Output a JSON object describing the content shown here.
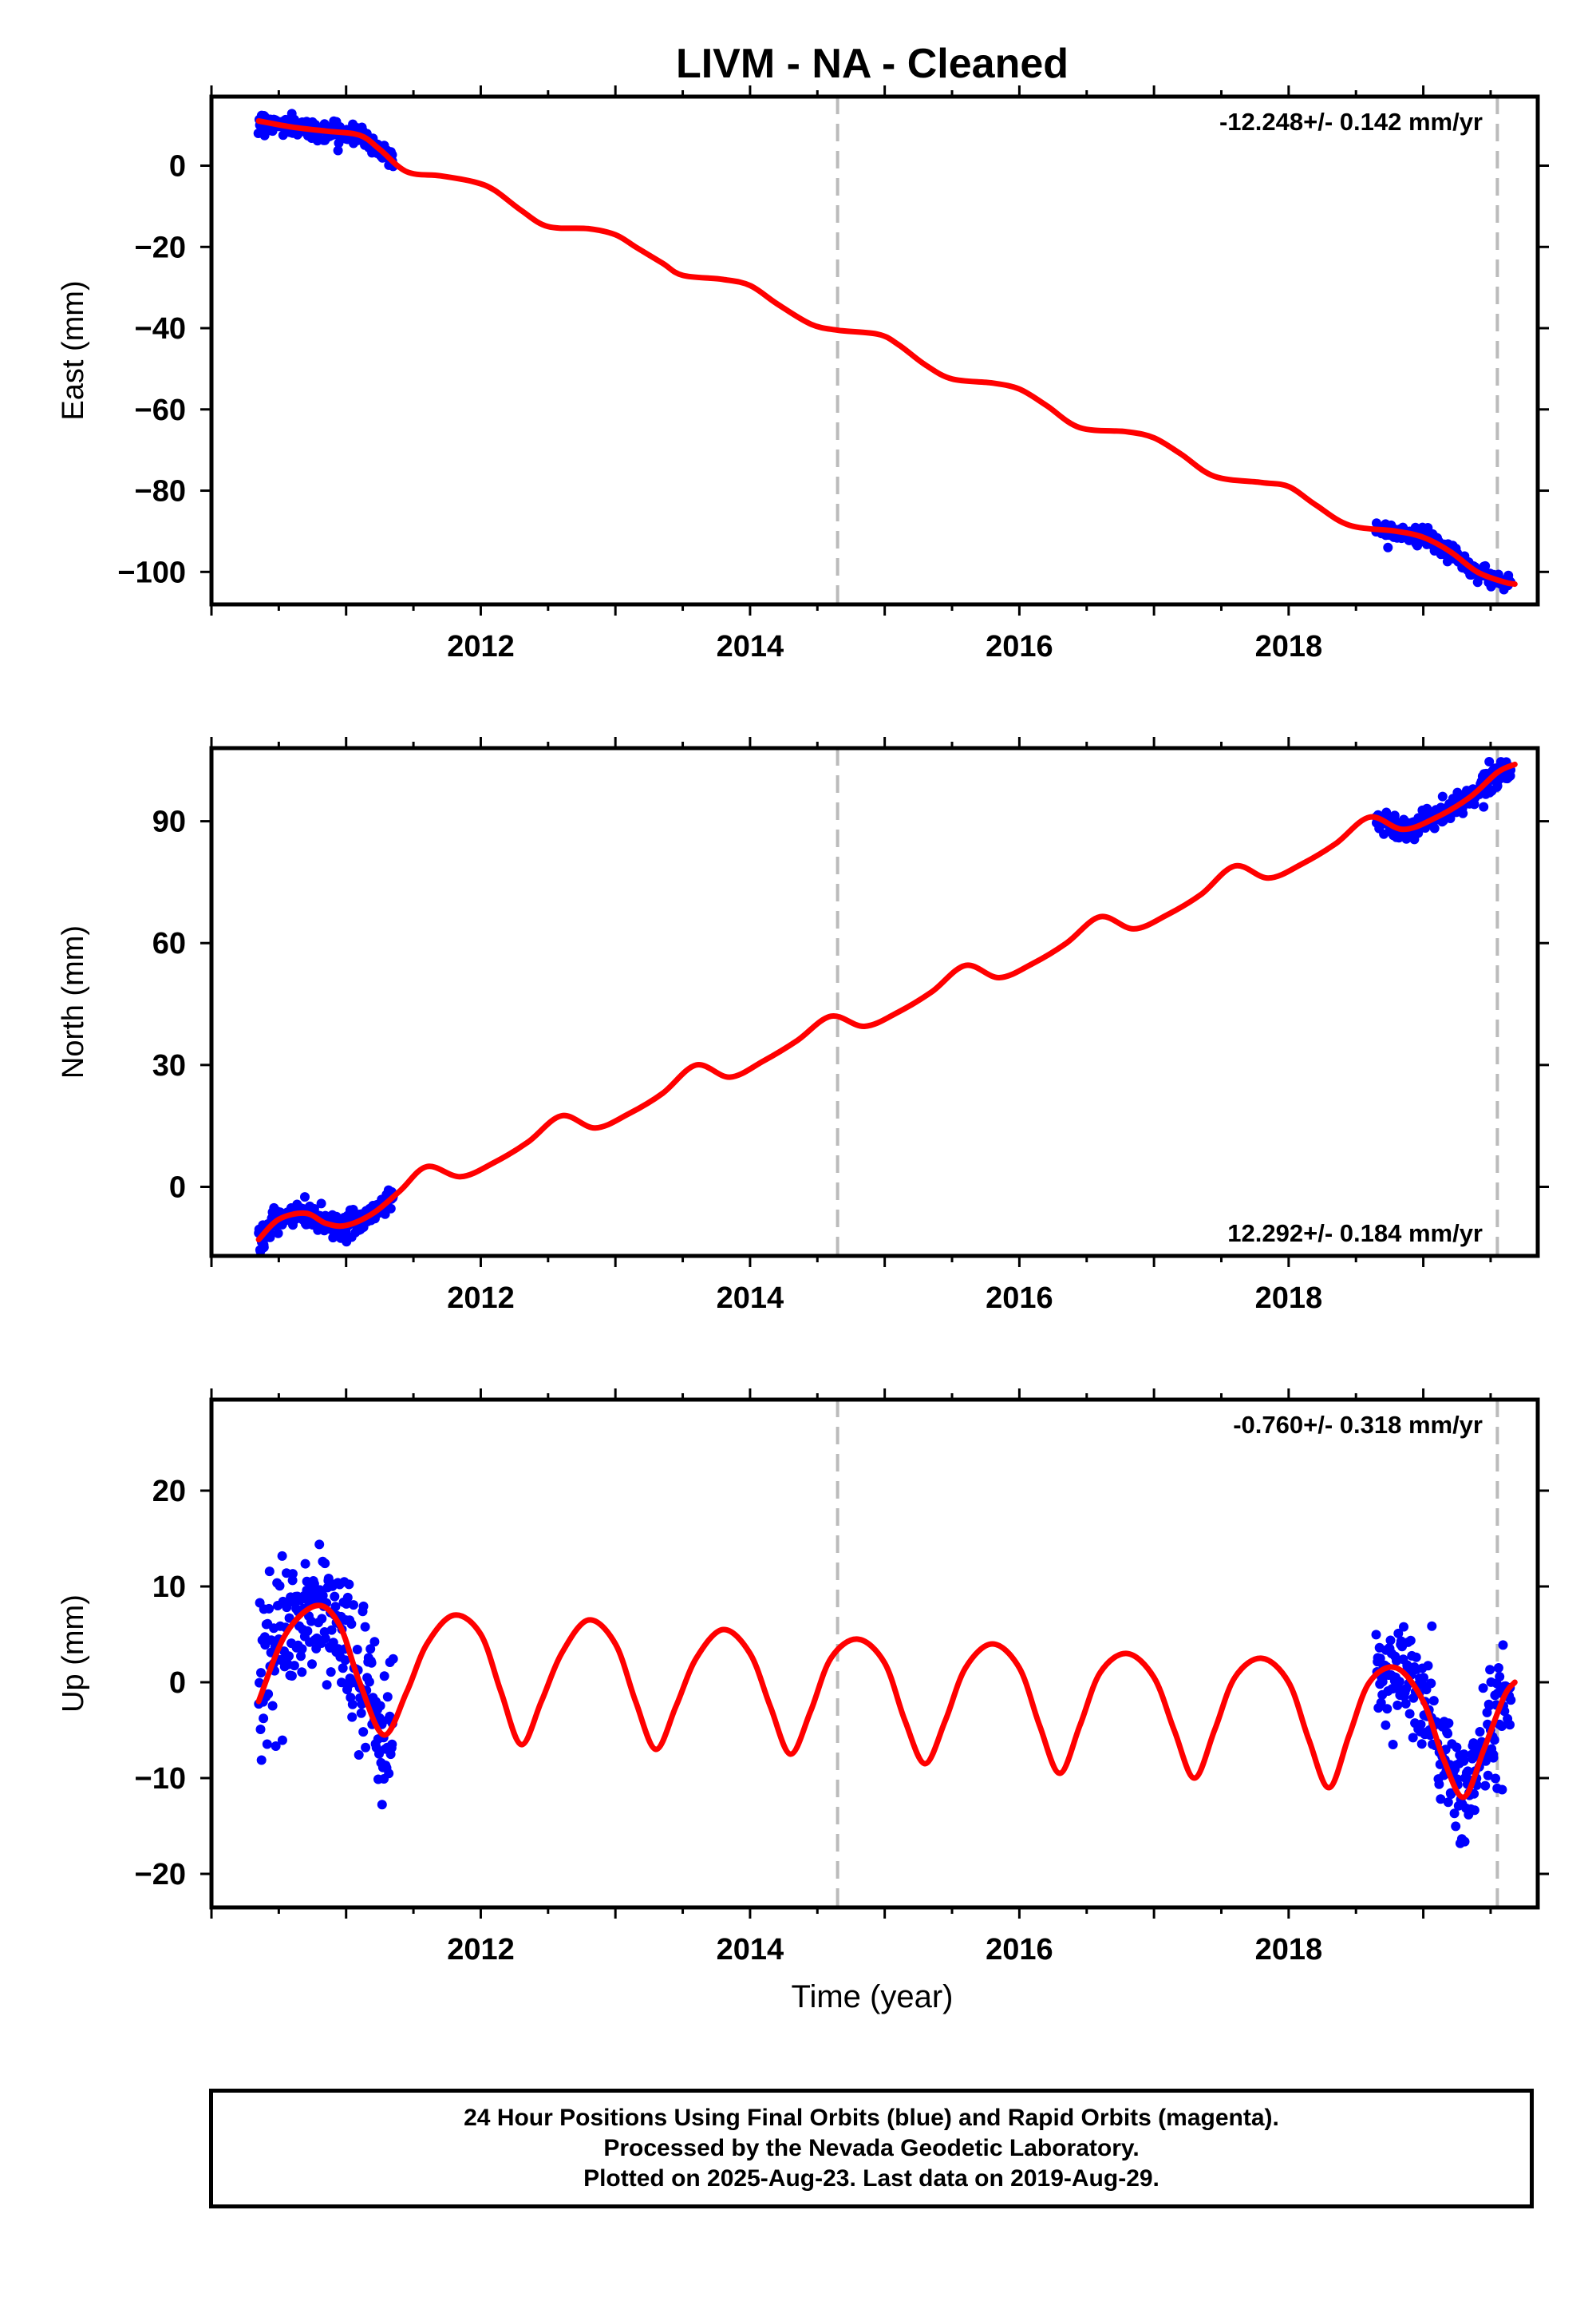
{
  "figure": {
    "title": "LIVM  - NA - Cleaned",
    "xlabel": "Time (year)",
    "footer_lines": [
      "24 Hour Positions Using Final Orbits (blue) and Rapid Orbits (magenta).",
      "Processed by the Nevada Geodetic Laboratory.",
      "Plotted on 2025-Aug-23. Last data on 2019-Aug-29."
    ],
    "colors": {
      "data_points": "#0000ff",
      "model_fit": "#ff0000",
      "event_lines": "#bbbbbb",
      "frame": "#000000"
    }
  },
  "chart_data": [
    {
      "type": "scatter",
      "title": "",
      "ylabel": "East (mm)",
      "rate_text": "-12.248+/- 0.142 mm/yr",
      "rate_position": "top-right",
      "xlim": [
        2010.0,
        2019.85
      ],
      "ylim": [
        -108,
        17
      ],
      "xticks": [
        2012,
        2014,
        2016,
        2018
      ],
      "xtick_labels": [
        "2012",
        "2014",
        "2016",
        "2018"
      ],
      "yticks": [
        0,
        -20,
        -40,
        -60,
        -80,
        -100
      ],
      "ytick_labels": [
        "0",
        "−20",
        "−40",
        "−60",
        "−80",
        "−100"
      ],
      "event_lines_x": [
        2014.65,
        2019.55
      ],
      "data_segments": [
        {
          "x_start": 2010.35,
          "x_end": 2011.35,
          "noise_mm": 1.1
        },
        {
          "x_start": 2018.65,
          "x_end": 2019.65,
          "noise_mm": 1.0
        }
      ],
      "model": {
        "name": "model fit",
        "points": [
          [
            2010.35,
            11
          ],
          [
            2010.6,
            9.5
          ],
          [
            2010.85,
            8.5
          ],
          [
            2011.1,
            7.5
          ],
          [
            2011.25,
            4
          ],
          [
            2011.45,
            -1.5
          ],
          [
            2011.7,
            -2.5
          ],
          [
            2011.95,
            -4
          ],
          [
            2012.1,
            -6
          ],
          [
            2012.3,
            -11
          ],
          [
            2012.5,
            -15
          ],
          [
            2012.8,
            -15.5
          ],
          [
            2013.0,
            -17
          ],
          [
            2013.15,
            -20
          ],
          [
            2013.35,
            -24
          ],
          [
            2013.5,
            -27
          ],
          [
            2013.8,
            -28
          ],
          [
            2014.0,
            -29.5
          ],
          [
            2014.2,
            -34
          ],
          [
            2014.45,
            -39
          ],
          [
            2014.65,
            -40.5
          ],
          [
            2014.95,
            -41.5
          ],
          [
            2015.1,
            -44
          ],
          [
            2015.3,
            -49
          ],
          [
            2015.5,
            -52.5
          ],
          [
            2015.8,
            -53.5
          ],
          [
            2016.0,
            -55
          ],
          [
            2016.2,
            -59
          ],
          [
            2016.45,
            -64.5
          ],
          [
            2016.8,
            -65.5
          ],
          [
            2017.0,
            -67
          ],
          [
            2017.2,
            -71
          ],
          [
            2017.45,
            -76.5
          ],
          [
            2017.8,
            -78
          ],
          [
            2018.0,
            -79
          ],
          [
            2018.2,
            -83.5
          ],
          [
            2018.45,
            -88.5
          ],
          [
            2018.8,
            -90
          ],
          [
            2019.0,
            -91.5
          ],
          [
            2019.2,
            -95
          ],
          [
            2019.4,
            -100
          ],
          [
            2019.6,
            -102.5
          ],
          [
            2019.68,
            -103
          ]
        ]
      }
    },
    {
      "type": "scatter",
      "title": "",
      "ylabel": "North (mm)",
      "rate_text": "12.292+/- 0.184 mm/yr",
      "rate_position": "bottom-right",
      "xlim": [
        2010.0,
        2019.85
      ],
      "ylim": [
        -17,
        108
      ],
      "xticks": [
        2012,
        2014,
        2016,
        2018
      ],
      "xtick_labels": [
        "2012",
        "2014",
        "2016",
        "2018"
      ],
      "yticks": [
        90,
        60,
        30,
        0
      ],
      "ytick_labels": [
        "90",
        "60",
        "30",
        "0"
      ],
      "event_lines_x": [
        2014.65,
        2019.55
      ],
      "data_segments": [
        {
          "x_start": 2010.35,
          "x_end": 2011.35,
          "noise_mm": 1.6
        },
        {
          "x_start": 2018.65,
          "x_end": 2019.65,
          "noise_mm": 1.4
        }
      ],
      "model": {
        "name": "model fit",
        "points": [
          [
            2010.35,
            -13
          ],
          [
            2010.5,
            -8
          ],
          [
            2010.7,
            -6.5
          ],
          [
            2010.85,
            -9
          ],
          [
            2011.0,
            -9.5
          ],
          [
            2011.2,
            -6.5
          ],
          [
            2011.4,
            -1
          ],
          [
            2011.6,
            5
          ],
          [
            2011.85,
            2.5
          ],
          [
            2012.1,
            6
          ],
          [
            2012.35,
            11
          ],
          [
            2012.6,
            17.5
          ],
          [
            2012.85,
            14.5
          ],
          [
            2013.1,
            18
          ],
          [
            2013.35,
            23
          ],
          [
            2013.6,
            30
          ],
          [
            2013.85,
            27
          ],
          [
            2014.1,
            31
          ],
          [
            2014.35,
            36
          ],
          [
            2014.6,
            42
          ],
          [
            2014.85,
            39.5
          ],
          [
            2015.1,
            43
          ],
          [
            2015.35,
            48
          ],
          [
            2015.6,
            54.5
          ],
          [
            2015.85,
            51.5
          ],
          [
            2016.1,
            55
          ],
          [
            2016.35,
            60
          ],
          [
            2016.6,
            66.5
          ],
          [
            2016.85,
            63.5
          ],
          [
            2017.1,
            67
          ],
          [
            2017.35,
            72
          ],
          [
            2017.6,
            79
          ],
          [
            2017.85,
            76
          ],
          [
            2018.1,
            79.5
          ],
          [
            2018.35,
            84.5
          ],
          [
            2018.6,
            91
          ],
          [
            2018.85,
            88
          ],
          [
            2019.1,
            91
          ],
          [
            2019.35,
            96
          ],
          [
            2019.55,
            102
          ],
          [
            2019.68,
            104
          ]
        ]
      }
    },
    {
      "type": "scatter",
      "title": "",
      "ylabel": "Up (mm)",
      "rate_text": "-0.760+/- 0.318 mm/yr",
      "rate_position": "top-right",
      "xlim": [
        2010.0,
        2019.85
      ],
      "ylim": [
        -23.5,
        29.5
      ],
      "xticks": [
        2012,
        2014,
        2016,
        2018
      ],
      "xtick_labels": [
        "2012",
        "2014",
        "2016",
        "2018"
      ],
      "yticks": [
        20,
        10,
        0,
        -10,
        -20
      ],
      "ytick_labels": [
        "20",
        "10",
        "0",
        "−10",
        "−20"
      ],
      "event_lines_x": [
        2014.65,
        2019.55
      ],
      "data_segments": [
        {
          "x_start": 2010.35,
          "x_end": 2011.35,
          "noise_mm": 3.5
        },
        {
          "x_start": 2018.65,
          "x_end": 2019.65,
          "noise_mm": 3.0
        }
      ],
      "model": {
        "name": "model fit",
        "points": [
          [
            2010.35,
            -2
          ],
          [
            2010.55,
            5
          ],
          [
            2010.78,
            8
          ],
          [
            2010.95,
            6
          ],
          [
            2011.1,
            0
          ],
          [
            2011.28,
            -5.5
          ],
          [
            2011.45,
            -1
          ],
          [
            2011.6,
            4
          ],
          [
            2011.8,
            7
          ],
          [
            2012.0,
            5
          ],
          [
            2012.15,
            -1
          ],
          [
            2012.3,
            -6.5
          ],
          [
            2012.45,
            -2
          ],
          [
            2012.6,
            3
          ],
          [
            2012.8,
            6.5
          ],
          [
            2013.0,
            4
          ],
          [
            2013.15,
            -2
          ],
          [
            2013.3,
            -7
          ],
          [
            2013.45,
            -2.5
          ],
          [
            2013.6,
            2.5
          ],
          [
            2013.8,
            5.5
          ],
          [
            2014.0,
            3
          ],
          [
            2014.15,
            -2.5
          ],
          [
            2014.3,
            -7.5
          ],
          [
            2014.45,
            -3
          ],
          [
            2014.6,
            2.5
          ],
          [
            2014.8,
            4.5
          ],
          [
            2015.0,
            2
          ],
          [
            2015.15,
            -4
          ],
          [
            2015.3,
            -8.5
          ],
          [
            2015.45,
            -4
          ],
          [
            2015.6,
            1.5
          ],
          [
            2015.8,
            4
          ],
          [
            2016.0,
            1.5
          ],
          [
            2016.15,
            -4.5
          ],
          [
            2016.3,
            -9.5
          ],
          [
            2016.45,
            -4.5
          ],
          [
            2016.6,
            1
          ],
          [
            2016.8,
            3
          ],
          [
            2017.0,
            0.5
          ],
          [
            2017.15,
            -5
          ],
          [
            2017.3,
            -10
          ],
          [
            2017.45,
            -5
          ],
          [
            2017.6,
            0.5
          ],
          [
            2017.8,
            2.5
          ],
          [
            2018.0,
            0
          ],
          [
            2018.15,
            -6
          ],
          [
            2018.3,
            -11
          ],
          [
            2018.45,
            -5.5
          ],
          [
            2018.6,
            0
          ],
          [
            2018.8,
            1.5
          ],
          [
            2019.0,
            -2
          ],
          [
            2019.15,
            -8
          ],
          [
            2019.3,
            -12
          ],
          [
            2019.45,
            -7
          ],
          [
            2019.6,
            -1.5
          ],
          [
            2019.68,
            0
          ]
        ]
      }
    }
  ]
}
